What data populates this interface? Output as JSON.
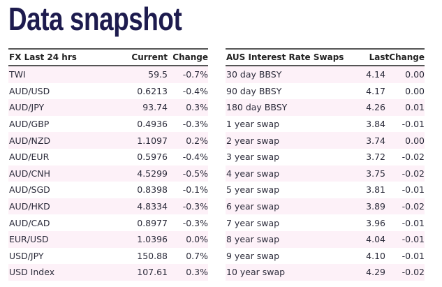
{
  "title": "Data snapshot",
  "colors": {
    "title": "#1d1b4e",
    "row_tint": "#fdf1f8"
  },
  "fx": {
    "headers": [
      "FX Last 24 hrs",
      "Current",
      "Change"
    ],
    "rows": [
      [
        "TWI",
        "59.5",
        "-0.7%"
      ],
      [
        "AUD/USD",
        "0.6213",
        "-0.4%"
      ],
      [
        "AUD/JPY",
        "93.74",
        "0.3%"
      ],
      [
        "AUD/GBP",
        "0.4936",
        "-0.3%"
      ],
      [
        "AUD/NZD",
        "1.1097",
        "0.2%"
      ],
      [
        "AUD/EUR",
        "0.5976",
        "-0.4%"
      ],
      [
        "AUD/CNH",
        "4.5299",
        "-0.5%"
      ],
      [
        "AUD/SGD",
        "0.8398",
        "-0.1%"
      ],
      [
        "AUD/HKD",
        "4.8334",
        "-0.3%"
      ],
      [
        "AUD/CAD",
        "0.8977",
        "-0.3%"
      ],
      [
        "EUR/USD",
        "1.0396",
        "0.0%"
      ],
      [
        "USD/JPY",
        "150.88",
        "0.7%"
      ],
      [
        "USD Index",
        "107.61",
        "0.3%"
      ]
    ]
  },
  "swaps": {
    "headers": [
      "AUS Interest Rate Swaps",
      "Last",
      "Change"
    ],
    "rows": [
      [
        "30 day BBSY",
        "4.14",
        "0.00"
      ],
      [
        "90 day BBSY",
        "4.17",
        "0.00"
      ],
      [
        "180 day BBSY",
        "4.26",
        "0.01"
      ],
      [
        "1 year swap",
        "3.84",
        "-0.01"
      ],
      [
        "2 year swap",
        "3.74",
        "0.00"
      ],
      [
        "3 year swap",
        "3.72",
        "-0.02"
      ],
      [
        "4 year swap",
        "3.75",
        "-0.02"
      ],
      [
        "5 year swap",
        "3.81",
        "-0.01"
      ],
      [
        "6 year swap",
        "3.89",
        "-0.02"
      ],
      [
        "7 year swap",
        "3.96",
        "-0.01"
      ],
      [
        "8 year swap",
        "4.04",
        "-0.01"
      ],
      [
        "9 year swap",
        "4.10",
        "-0.01"
      ],
      [
        "10 year swap",
        "4.29",
        "-0.02"
      ]
    ]
  }
}
